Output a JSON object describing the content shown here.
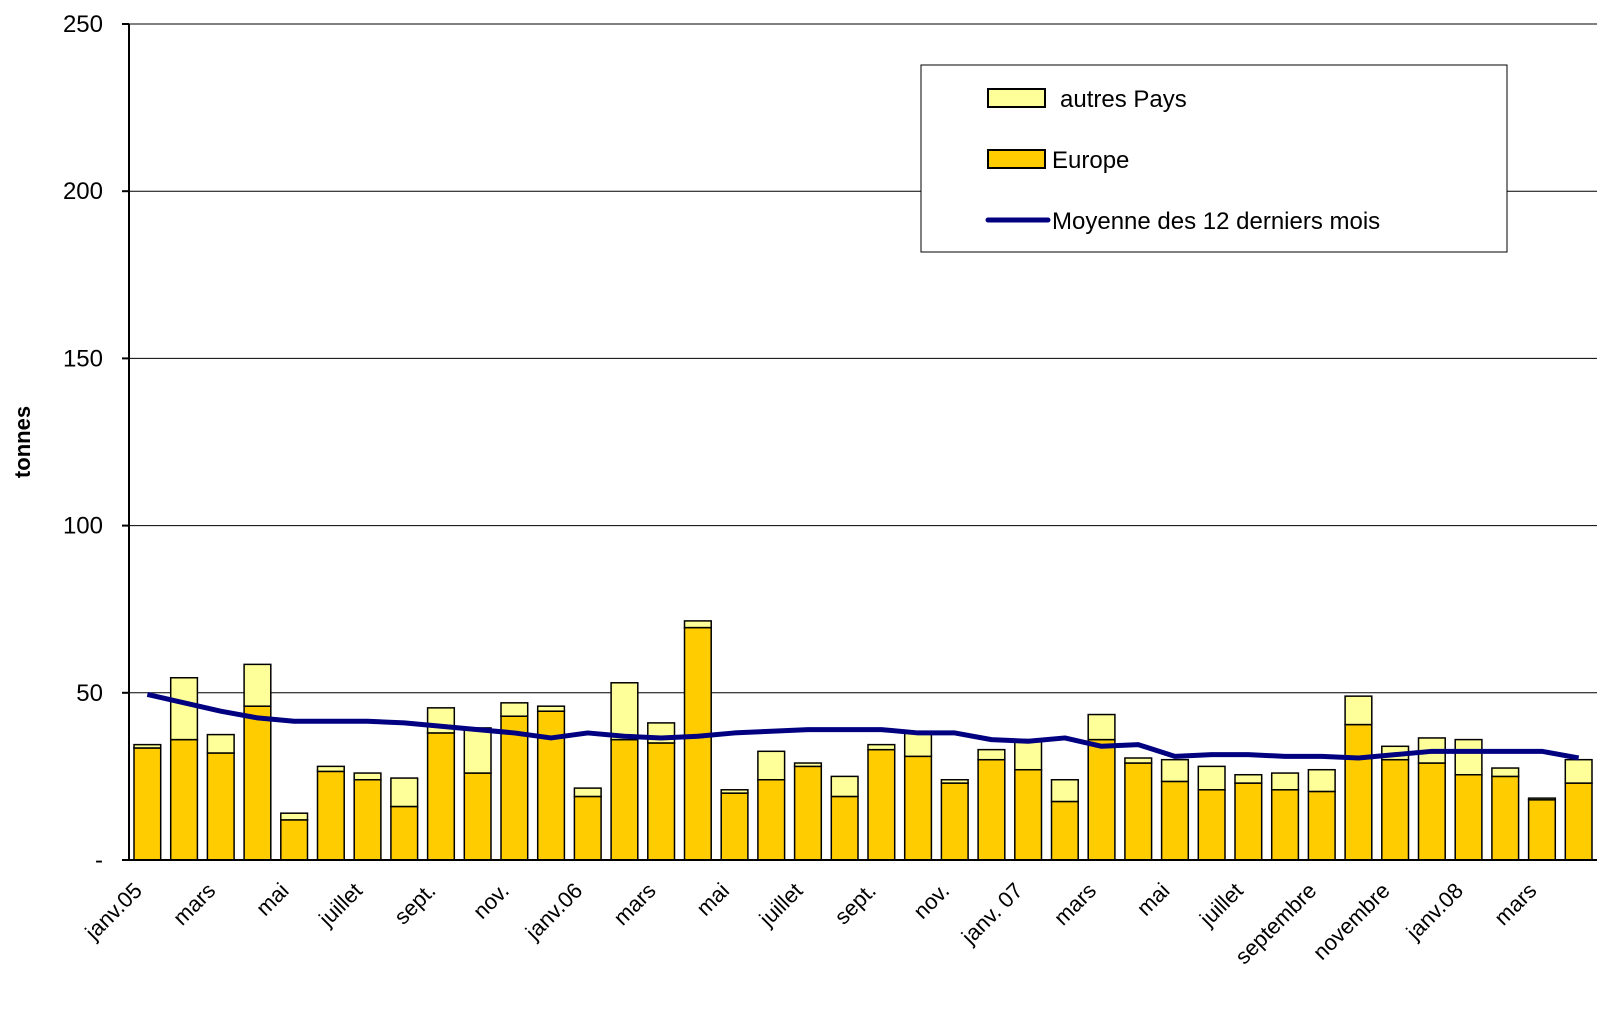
{
  "chart_data": {
    "type": "bar",
    "stacked": true,
    "y_label": "tonnes",
    "categories": [
      "janv.05",
      null,
      "mars",
      null,
      "mai",
      null,
      "juillet",
      null,
      "sept.",
      null,
      "nov.",
      null,
      "janv.06",
      null,
      "mars",
      null,
      "mai",
      null,
      "juillet",
      null,
      "sept.",
      null,
      "nov.",
      null,
      "janv. 07",
      null,
      "mars",
      null,
      "mai",
      null,
      "juillet",
      null,
      "septembre",
      null,
      "novembre",
      null,
      "janv.08",
      null,
      "mars",
      null
    ],
    "series": [
      {
        "name": "Europe",
        "color": "#FFCC00",
        "type": "bar",
        "values": [
          33.5,
          36,
          32,
          46,
          12,
          26.5,
          24,
          16,
          38,
          26,
          43,
          44.5,
          19,
          36,
          35,
          69.5,
          20,
          24,
          28,
          19,
          33,
          31,
          23,
          30,
          27,
          17.5,
          36,
          29,
          23.5,
          21,
          23,
          21,
          20.5,
          40.5,
          30,
          29,
          25.5,
          25,
          18,
          23
        ]
      },
      {
        "name": "autres Pays",
        "color": "#FFFF99",
        "type": "bar",
        "values": [
          1,
          18.5,
          5.5,
          12.5,
          2,
          1.5,
          2,
          8.5,
          7.5,
          13.5,
          4,
          1.5,
          2.5,
          17,
          6,
          2,
          1,
          8.5,
          1,
          6,
          1.5,
          7,
          1,
          3,
          9,
          6.5,
          7.5,
          1.5,
          6.5,
          7,
          2.5,
          5,
          6.5,
          8.5,
          4,
          7.5,
          10.5,
          2.5,
          0.5,
          7
        ]
      },
      {
        "name": "Moyenne des 12 derniers mois",
        "color": "#000080",
        "type": "line",
        "values": [
          49.5,
          47,
          44.5,
          42.5,
          41.5,
          41.5,
          41.5,
          41,
          40,
          39,
          38,
          36.5,
          38,
          37,
          36.5,
          37,
          38,
          38.5,
          39,
          39,
          39,
          38,
          38,
          36,
          35.5,
          36.5,
          34,
          34.5,
          31,
          31.5,
          31.5,
          31,
          31,
          30.5,
          31.5,
          32.5,
          32.5,
          32.5,
          32.5,
          30.5
        ]
      }
    ],
    "legend_order": [
      1,
      0,
      2
    ],
    "ylim": [
      0,
      250
    ],
    "yticks": [
      {
        "value": 0,
        "label": "-"
      },
      50,
      100,
      150,
      200,
      250
    ],
    "grid": true
  }
}
